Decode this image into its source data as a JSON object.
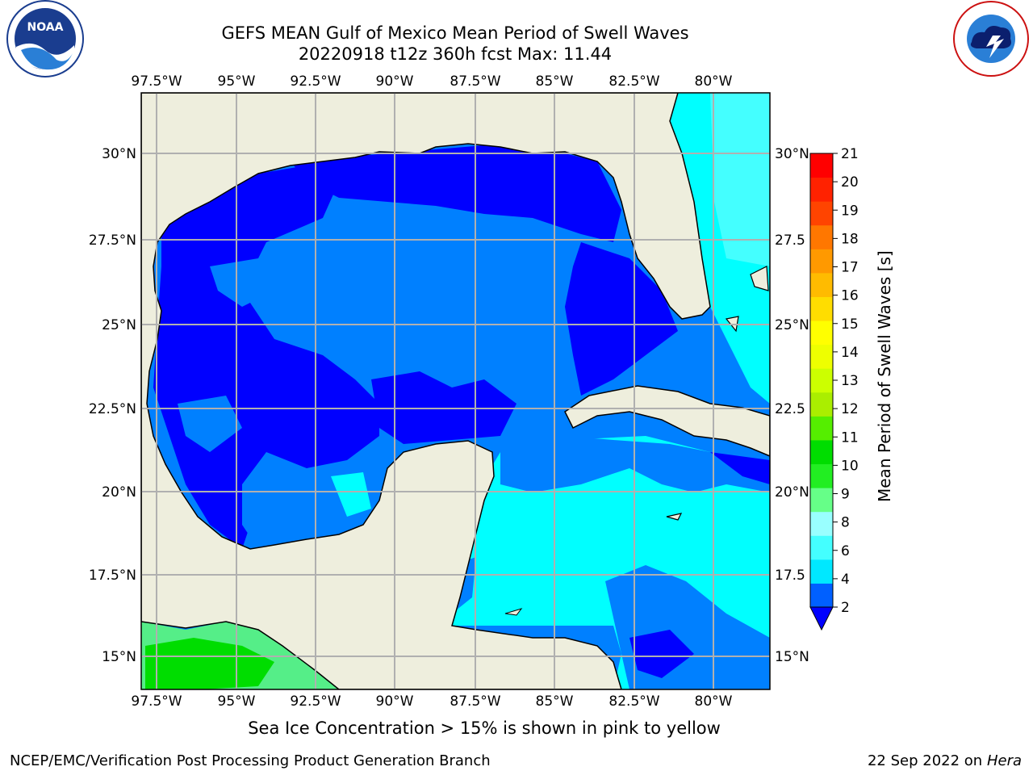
{
  "header": {
    "title_line1": "GEFS MEAN Gulf of Mexico Mean Period of Swell Waves",
    "title_line2": "20220918 t12z 360h fcst   Max: 11.44"
  },
  "logos": {
    "left": "NOAA",
    "left_ring": "NATIONAL OCEANIC AND ATMOSPHERIC ADMINISTRATION · U.S. DEPARTMENT OF COMMERCE",
    "right_ring": "NATIONAL WEATHER SERVICE"
  },
  "map": {
    "lon_labels": [
      "97.5°W",
      "95°W",
      "92.5°W",
      "90°W",
      "87.5°W",
      "85°W",
      "82.5°W",
      "80°W"
    ],
    "lat_labels_left": [
      "30°N",
      "27.5°N",
      "25°N",
      "22.5°N",
      "20°N",
      "17.5°N",
      "15°N"
    ],
    "lat_labels_right": [
      "30°N",
      "27.5",
      "25°N",
      "22.5",
      "20°N",
      "17.5",
      "15°N"
    ],
    "colors": {
      "land": "#eeeedd",
      "grid": "#b0b0b0",
      "deep": "#0000ff",
      "mid": "#0080ff",
      "light": "#00ffff",
      "green": "#00dd00"
    }
  },
  "colorbar": {
    "label": "Mean Period of Swell Waves [s]",
    "ticks": [
      "21",
      "20",
      "19",
      "18",
      "17",
      "16",
      "15",
      "14",
      "13",
      "12",
      "11",
      "10",
      "9",
      "8",
      "6",
      "4",
      "2"
    ],
    "colors": [
      "#0060ff",
      "#00e8ff",
      "#44ffff",
      "#99ffff",
      "#66ff88",
      "#22ee22",
      "#00dd00",
      "#55ee00",
      "#aaee00",
      "#ccff00",
      "#eeff00",
      "#ffff00",
      "#ffdd00",
      "#ffbb00",
      "#ff9900",
      "#ff7700",
      "#ff4400",
      "#ff2200",
      "#ff0000"
    ]
  },
  "note": "Sea Ice Concentration > 15% is shown in pink to yellow",
  "footer": {
    "left": "NCEP/EMC/Verification Post Processing Product Generation Branch",
    "right_prefix": "22 Sep 2022 on",
    "right_machine": "Hera"
  }
}
